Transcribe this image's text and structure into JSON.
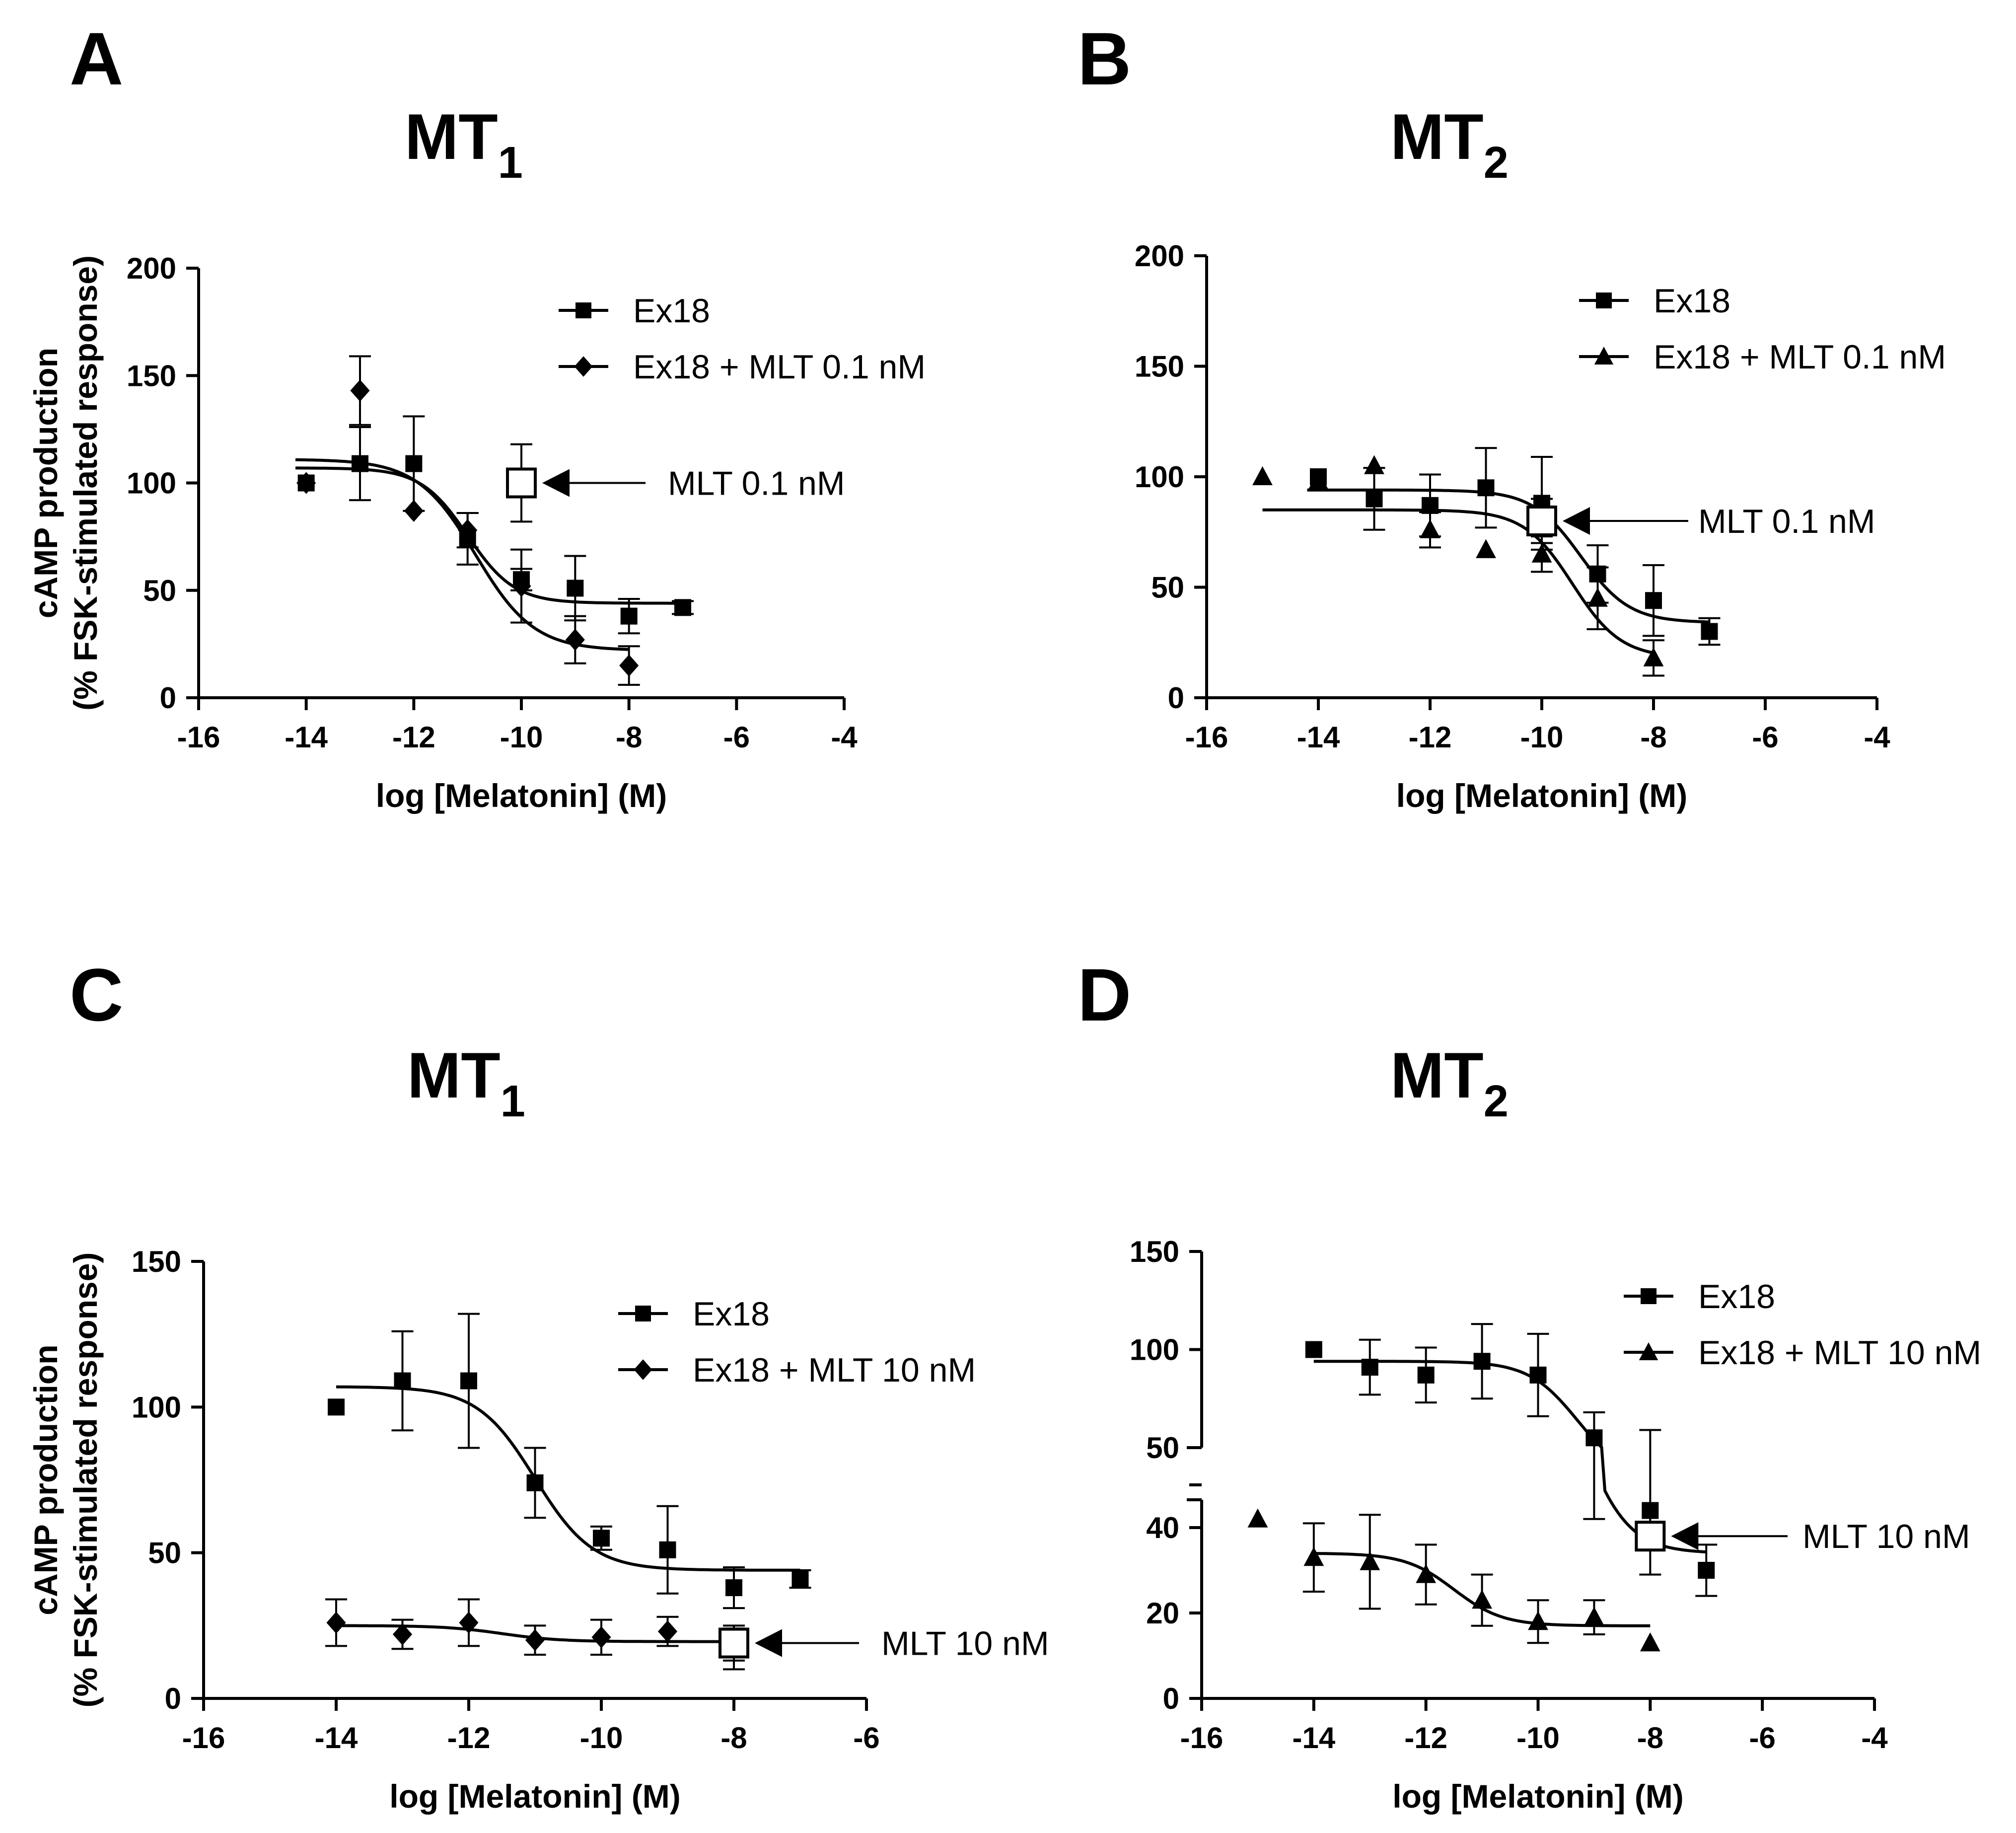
{
  "chart_data": [
    {
      "panel_label": "A",
      "type": "scatter",
      "title_main": "MT",
      "title_sub": "1",
      "xlabel": "log [Melatonin] (M)",
      "ylabel_line1": "cAMP production",
      "ylabel_line2": "(% FSK-stimulated response)",
      "xlim": [
        -16,
        -4
      ],
      "ylim": [
        0,
        200
      ],
      "xticks": [
        "-16",
        "-14",
        "-12",
        "-10",
        "-8",
        "-6",
        "-4"
      ],
      "yticks": [
        "0",
        "50",
        "100",
        "150",
        "200"
      ],
      "legend_position": "top-right",
      "series": [
        {
          "name": "Ex18",
          "marker": "square",
          "x": [
            -14,
            -13,
            -12,
            -11,
            -10,
            -9,
            -8,
            -7
          ],
          "y": [
            100,
            109,
            109,
            74,
            55,
            51,
            38,
            42
          ],
          "err": [
            0,
            17,
            22,
            12,
            5,
            15,
            8,
            3
          ],
          "fit": {
            "top": 107,
            "bottom": 44,
            "logec50": -11.0,
            "hill": 1.0,
            "x_range": [
              -14.2,
              -7
            ]
          }
        },
        {
          "name": "Ex18 + MLT 0.1 nM",
          "marker": "diamond",
          "x": [
            -14,
            -13,
            -12,
            -11,
            -10,
            -9,
            -8
          ],
          "y": [
            100,
            143,
            87,
            78,
            52,
            27,
            15
          ],
          "err": [
            0,
            16,
            0,
            8,
            17,
            11,
            9
          ],
          "fit": {
            "top": 111,
            "bottom": 22,
            "logec50": -10.85,
            "hill": 0.8,
            "x_range": [
              -14.2,
              -8
            ]
          }
        }
      ],
      "reference": {
        "label": "MLT 0.1 nM",
        "x": -10,
        "y": 100,
        "err": 18
      }
    },
    {
      "panel_label": "B",
      "type": "scatter",
      "title_main": "MT",
      "title_sub": "2",
      "xlabel": "log [Melatonin] (M)",
      "xlim": [
        -16,
        -4
      ],
      "ylim": [
        0,
        200
      ],
      "xticks": [
        "-16",
        "-14",
        "-12",
        "-10",
        "-8",
        "-6",
        "-4"
      ],
      "yticks": [
        "0",
        "50",
        "100",
        "150",
        "200"
      ],
      "legend_position": "top-right",
      "series": [
        {
          "name": "Ex18",
          "marker": "square",
          "x": [
            -14,
            -13,
            -12,
            -11,
            -10,
            -9,
            -8,
            -7
          ],
          "y": [
            100,
            90,
            87,
            95,
            88,
            56,
            44,
            30
          ],
          "err": [
            0,
            14,
            14,
            18,
            21,
            13,
            16,
            6
          ],
          "fit": {
            "top": 94,
            "bottom": 34,
            "logec50": -9.3,
            "hill": 1.0,
            "x_range": [
              -14.2,
              -7
            ]
          }
        },
        {
          "name": "Ex18 + MLT 0.1 nM",
          "marker": "triangle",
          "x": [
            -15,
            -14,
            -13,
            -12,
            -11,
            -10,
            -9,
            -8
          ],
          "y": [
            100,
            98,
            105,
            76,
            67,
            65,
            45,
            18
          ],
          "err": [
            0,
            0,
            0,
            8,
            0,
            8,
            14,
            8
          ],
          "fit": {
            "top": 85,
            "bottom": 18,
            "logec50": -9.45,
            "hill": 1.0,
            "x_range": [
              -15,
              -8
            ]
          }
        }
      ],
      "reference": {
        "label": "MLT 0.1 nM",
        "x": -10,
        "y": 80,
        "err": 10
      }
    },
    {
      "panel_label": "C",
      "type": "scatter",
      "title_main": "MT",
      "title_sub": "1",
      "xlabel": "log [Melatonin] (M)",
      "ylabel_line1": "cAMP production",
      "ylabel_line2": "(% FSK-stimulated response)",
      "xlim": [
        -16,
        -6
      ],
      "ylim": [
        0,
        150
      ],
      "xticks": [
        "-16",
        "-14",
        "-12",
        "-10",
        "-8",
        "-6"
      ],
      "yticks": [
        "0",
        "50",
        "100",
        "150"
      ],
      "legend_position": "top-right",
      "series": [
        {
          "name": "Ex18",
          "marker": "square",
          "x": [
            -14,
            -13,
            -12,
            -11,
            -10,
            -9,
            -8,
            -7
          ],
          "y": [
            100,
            109,
            109,
            74,
            55,
            51,
            38,
            41
          ],
          "err": [
            0,
            17,
            23,
            12,
            4,
            15,
            7,
            3
          ],
          "fit": {
            "top": 107,
            "bottom": 44,
            "logec50": -11.0,
            "hill": 1.0,
            "x_range": [
              -14,
              -7
            ]
          }
        },
        {
          "name": "Ex18 + MLT 10 nM",
          "marker": "diamond",
          "x": [
            -14,
            -13,
            -12,
            -11,
            -10,
            -9,
            -8
          ],
          "y": [
            26,
            22,
            26,
            20,
            21,
            23,
            17
          ],
          "err": [
            8,
            5,
            8,
            5,
            6,
            5,
            7
          ],
          "fit": {
            "top": 25,
            "bottom": 19.5,
            "logec50": -11.5,
            "hill": 1.0,
            "x_range": [
              -14,
              -8
            ]
          }
        }
      ],
      "reference": {
        "label": "MLT 10 nM",
        "x": -8,
        "y": 19,
        "err": 6
      }
    },
    {
      "panel_label": "D",
      "type": "scatter",
      "title_main": "MT",
      "title_sub": "2",
      "xlabel": "log [Melatonin] (M)",
      "xlim": [
        -16,
        -4
      ],
      "ylim": [
        0,
        150
      ],
      "axis_break": {
        "lower_range": [
          0,
          50
        ],
        "upper_range": [
          50,
          150
        ]
      },
      "xticks": [
        "-16",
        "-14",
        "-12",
        "-10",
        "-8",
        "-6",
        "-4"
      ],
      "yticks": [
        "0",
        "20",
        "40",
        "50",
        "100",
        "150"
      ],
      "legend_position": "top-right",
      "series": [
        {
          "name": "Ex18",
          "marker": "square",
          "x": [
            -14,
            -13,
            -12,
            -11,
            -10,
            -9,
            -8,
            -7
          ],
          "y": [
            100,
            91,
            87,
            94,
            87,
            55,
            44,
            30
          ],
          "err": [
            0,
            14,
            14,
            19,
            21,
            13,
            15,
            6
          ],
          "fit": {
            "top": 94,
            "bottom": 34,
            "logec50": -9.3,
            "hill": 1.0,
            "x_range": [
              -14,
              -7
            ]
          }
        },
        {
          "name": "Ex18 + MLT 10 nM",
          "marker": "triangle",
          "x": [
            -15,
            -14,
            -13,
            -12,
            -11,
            -10,
            -9,
            -8
          ],
          "y": [
            42,
            33,
            32,
            29,
            23,
            18,
            19,
            13
          ],
          "err": [
            0,
            8,
            11,
            7,
            6,
            5,
            4,
            0
          ],
          "fit": {
            "top": 34,
            "bottom": 17,
            "logec50": -11.5,
            "hill": 1.0,
            "x_range": [
              -14,
              -8
            ]
          }
        }
      ],
      "reference": {
        "label": "MLT 10 nM",
        "x": -8,
        "y": 38,
        "err": 0
      }
    }
  ]
}
